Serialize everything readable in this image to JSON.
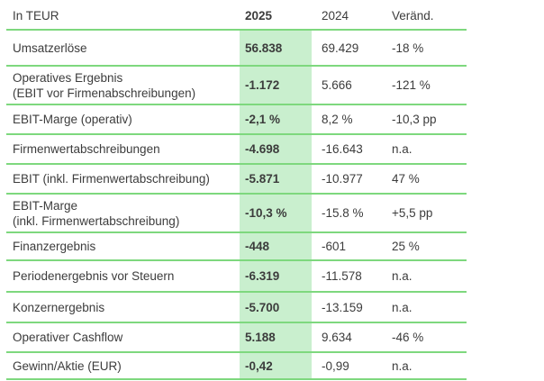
{
  "colors": {
    "line_green": "#7ed87e",
    "fill_green": "#c9efce",
    "text": "#3c3c3c"
  },
  "table": {
    "unit_label": "In TEUR",
    "columns": [
      {
        "key": "label",
        "header": "In TEUR"
      },
      {
        "key": "y2025",
        "header": "2025"
      },
      {
        "key": "y2024",
        "header": "2024"
      },
      {
        "key": "change",
        "header": "Veränd."
      }
    ],
    "rows": [
      {
        "label": "Umsatzerlöse",
        "y2025": "56.838",
        "y2024": "69.429",
        "change": "-18 %"
      },
      {
        "label": "Operatives Ergebnis\n(EBIT vor Firmenabschreibungen)",
        "y2025": "-1.172",
        "y2024": "5.666",
        "change": "-121 %"
      },
      {
        "label": "EBIT-Marge (operativ)",
        "y2025": "-2,1 %",
        "y2024": "8,2 %",
        "change": "-10,3 pp"
      },
      {
        "label": "Firmenwertabschreibungen",
        "y2025": "-4.698",
        "y2024": "-16.643",
        "change": "n.a."
      },
      {
        "label": "EBIT (inkl. Firmenwertabschreibung)",
        "y2025": "-5.871",
        "y2024": "-10.977",
        "change": "47 %"
      },
      {
        "label": "EBIT-Marge\n(inkl. Firmenwertabschreibung)",
        "y2025": "-10,3 %",
        "y2024": "-15.8 %",
        "change": "+5,5 pp"
      },
      {
        "label": "Finanzergebnis",
        "y2025": "-448",
        "y2024": "-601",
        "change": "25 %"
      },
      {
        "label": "Periodenergebnis vor Steuern",
        "y2025": "-6.319",
        "y2024": "-11.578",
        "change": "n.a."
      },
      {
        "label": "Konzernergebnis",
        "y2025": "-5.700",
        "y2024": "-13.159",
        "change": "n.a."
      },
      {
        "label": "Operativer Cashflow",
        "y2025": "5.188",
        "y2024": "9.634",
        "change": "-46 %"
      },
      {
        "label": "Gewinn/Aktie (EUR)",
        "y2025": "-0,42",
        "y2024": "-0,99",
        "change": "n.a."
      }
    ]
  }
}
